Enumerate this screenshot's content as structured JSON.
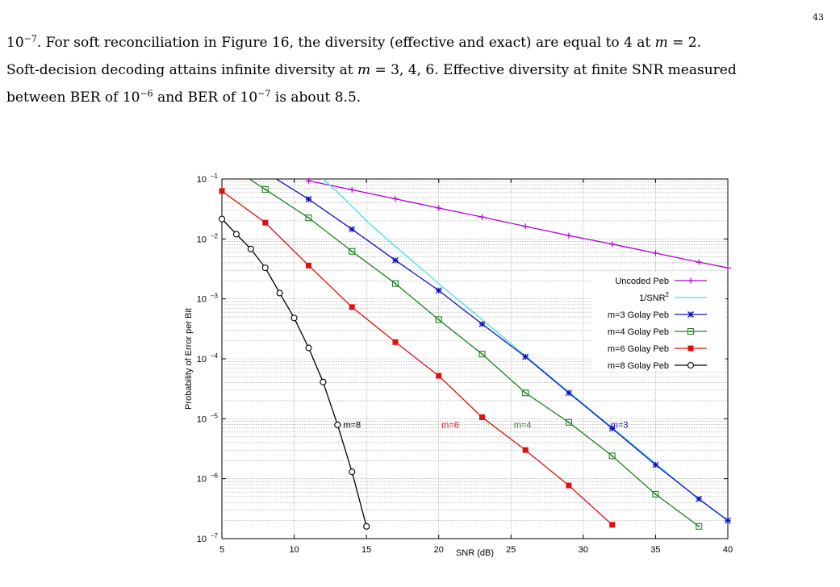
{
  "page": {
    "number": "43"
  },
  "paragraph": {
    "l1a": "10",
    "l1b": "−7",
    "l1c": ". For soft reconciliation in Figure 16, the diversity (effective and exact) are equal to 4 at ",
    "l1d": "m",
    "l1e": " = 2.",
    "l2a": "Soft-decision decoding attains infinite diversity at ",
    "l2b": "m",
    "l2c": " = 3, 4, 6. Effective diversity at finite SNR measured",
    "l3a": "between BER of 10",
    "l3b": "−6",
    "l3c": " and BER of 10",
    "l3d": "−7",
    "l3e": " is about 8.5."
  },
  "chart_data": {
    "type": "line",
    "xlabel": "SNR (dB)",
    "ylabel": "Probability of Error per Bit",
    "xlim": [
      5,
      40
    ],
    "ylim": [
      1e-07,
      0.1
    ],
    "yscale": "log",
    "grid": true,
    "legend_position": "right",
    "x_ticks": [
      5,
      10,
      15,
      20,
      25,
      30,
      35,
      40
    ],
    "y_ticks": [
      {
        "base": "10",
        "exp": "−1",
        "value": 0.1
      },
      {
        "base": "10",
        "exp": "−2",
        "value": 0.01
      },
      {
        "base": "10",
        "exp": "−3",
        "value": 0.001
      },
      {
        "base": "10",
        "exp": "−4",
        "value": 0.0001
      },
      {
        "base": "10",
        "exp": "−5",
        "value": 1e-05
      },
      {
        "base": "10",
        "exp": "−6",
        "value": 1e-06
      },
      {
        "base": "10",
        "exp": "−7",
        "value": 1e-07
      }
    ],
    "series": [
      {
        "name": "Uncoded Peb",
        "color": "#b000d0",
        "marker": "plus",
        "x": [
          11,
          14,
          17,
          20,
          23,
          26,
          29,
          32,
          35,
          38,
          40
        ],
        "y": [
          0.0932,
          0.0661,
          0.0466,
          0.0328,
          0.0232,
          0.0162,
          0.0114,
          0.0082,
          0.0058,
          0.0041,
          0.0033
        ]
      },
      {
        "name": "1/SNR",
        "name_sup": "2",
        "color": "#40e0e0",
        "marker": "none",
        "x": [
          12,
          13,
          14,
          15,
          17,
          20,
          23,
          26,
          29,
          32,
          35,
          38,
          40
        ],
        "y": [
          0.1,
          0.06,
          0.035,
          0.02,
          0.0075,
          0.0018,
          0.00045,
          0.000112,
          2.8e-05,
          7.1e-06,
          1.8e-06,
          4.5e-07,
          2e-07
        ]
      },
      {
        "name": "m=3 Golay Peb",
        "color": "#1010c0",
        "marker": "star",
        "x": [
          8,
          11,
          14,
          17,
          20,
          23,
          26,
          29,
          32,
          35,
          38,
          40
        ],
        "y": [
          0.13,
          0.046,
          0.0145,
          0.0044,
          0.00138,
          0.00038,
          0.000108,
          2.7e-05,
          6.9e-06,
          1.7e-06,
          4.6e-07,
          2e-07
        ]
      },
      {
        "name": "m=4 Golay Peb",
        "color": "#208020",
        "marker": "square-open",
        "x": [
          5,
          8,
          11,
          14,
          17,
          20,
          23,
          26,
          29,
          32,
          35,
          38
        ],
        "y": [
          0.2,
          0.067,
          0.0225,
          0.0062,
          0.0018,
          0.00045,
          0.00012,
          2.7e-05,
          8.7e-06,
          2.4e-06,
          5.5e-07,
          1.6e-07
        ]
      },
      {
        "name": "m=6 Golay Peb",
        "color": "#e01010",
        "marker": "square-filled",
        "x": [
          5,
          8,
          11,
          14,
          17,
          20,
          23,
          26,
          29,
          32
        ],
        "y": [
          0.063,
          0.0187,
          0.0036,
          0.00073,
          0.00019,
          5.2e-05,
          1.06e-05,
          3e-06,
          7.7e-07,
          1.7e-07
        ]
      },
      {
        "name": "m=8 Golay Peb",
        "color": "#000000",
        "marker": "circle-open",
        "x": [
          5,
          6,
          7,
          8,
          9,
          10,
          11,
          12,
          13,
          14,
          15
        ],
        "y": [
          0.0215,
          0.012,
          0.0068,
          0.0033,
          0.00125,
          0.00048,
          0.000152,
          4.1e-05,
          7.9e-06,
          1.3e-06,
          1.6e-07
        ]
      }
    ],
    "annotations": [
      {
        "text": "m=8",
        "x": 14.0,
        "y": 7.1e-06,
        "color": "#000000"
      },
      {
        "text": "m=6",
        "x": 20.8,
        "y": 7.1e-06,
        "color": "#e01010"
      },
      {
        "text": "m=4",
        "x": 25.8,
        "y": 7.1e-06,
        "color": "#208020"
      },
      {
        "text": "m=3",
        "x": 32.5,
        "y": 7.1e-06,
        "color": "#1010c0"
      }
    ]
  }
}
